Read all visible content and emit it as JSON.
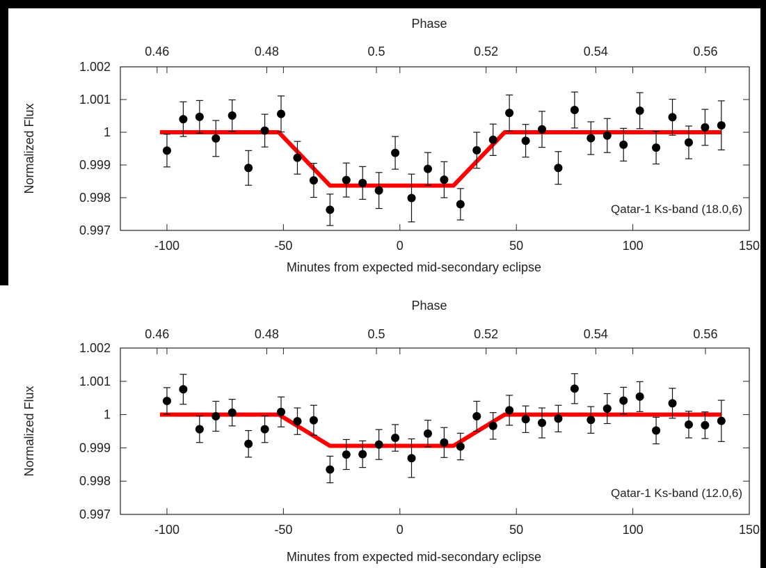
{
  "chart_data": [
    {
      "type": "scatter",
      "xlabel": "Minutes from expected mid-secondary eclipse",
      "ylabel": "Normalized Flux",
      "x2label": "Phase",
      "annotation": "Qatar-1 Ks-band (18.0,6)",
      "xlim": [
        -120,
        150
      ],
      "ylim": [
        0.997,
        1.002
      ],
      "x2lim": [
        0.4533,
        0.568
      ],
      "xticks": [
        "-100",
        "-50",
        "0",
        "50",
        "100",
        "150"
      ],
      "yticks": [
        "0.997",
        "0.998",
        "0.999",
        "1",
        "1.001",
        "1.002"
      ],
      "x2ticks": [
        "0.46",
        "0.48",
        "0.5",
        "0.52",
        "0.54",
        "0.56"
      ],
      "points": [
        {
          "x": -100,
          "y": 0.99944,
          "err": 0.0005
        },
        {
          "x": -93,
          "y": 1.0004,
          "err": 0.00053
        },
        {
          "x": -86,
          "y": 1.00047,
          "err": 0.0005
        },
        {
          "x": -79,
          "y": 0.99981,
          "err": 0.00055
        },
        {
          "x": -72,
          "y": 1.00051,
          "err": 0.00048
        },
        {
          "x": -65,
          "y": 0.99891,
          "err": 0.00053
        },
        {
          "x": -58,
          "y": 1.00005,
          "err": 0.0005
        },
        {
          "x": -51,
          "y": 1.00056,
          "err": 0.00055
        },
        {
          "x": -44,
          "y": 0.99922,
          "err": 0.0005
        },
        {
          "x": -37,
          "y": 0.99853,
          "err": 0.00052
        },
        {
          "x": -30,
          "y": 0.99763,
          "err": 0.00048
        },
        {
          "x": -23,
          "y": 0.99854,
          "err": 0.00052
        },
        {
          "x": -16,
          "y": 0.99845,
          "err": 0.0005
        },
        {
          "x": -9,
          "y": 0.99822,
          "err": 0.00055
        },
        {
          "x": -2,
          "y": 0.99937,
          "err": 0.0005
        },
        {
          "x": 5,
          "y": 0.99799,
          "err": 0.00073
        },
        {
          "x": 12,
          "y": 0.99888,
          "err": 0.0005
        },
        {
          "x": 19,
          "y": 0.99855,
          "err": 0.00055
        },
        {
          "x": 26,
          "y": 0.9978,
          "err": 0.00048
        },
        {
          "x": 33,
          "y": 0.99945,
          "err": 0.00055
        },
        {
          "x": 40,
          "y": 0.99977,
          "err": 0.00048
        },
        {
          "x": 47,
          "y": 1.00059,
          "err": 0.00055
        },
        {
          "x": 54,
          "y": 0.99974,
          "err": 0.0005
        },
        {
          "x": 61,
          "y": 1.00009,
          "err": 0.00055
        },
        {
          "x": 68,
          "y": 0.99891,
          "err": 0.0005
        },
        {
          "x": 75,
          "y": 1.00068,
          "err": 0.00055
        },
        {
          "x": 82,
          "y": 0.99982,
          "err": 0.0005
        },
        {
          "x": 89,
          "y": 0.9999,
          "err": 0.00052
        },
        {
          "x": 96,
          "y": 0.99962,
          "err": 0.0005
        },
        {
          "x": 103,
          "y": 1.00066,
          "err": 0.00055
        },
        {
          "x": 110,
          "y": 0.99953,
          "err": 0.0005
        },
        {
          "x": 117,
          "y": 1.00046,
          "err": 0.00055
        },
        {
          "x": 124,
          "y": 0.99969,
          "err": 0.0005
        },
        {
          "x": 131,
          "y": 1.00015,
          "err": 0.00055
        },
        {
          "x": 138,
          "y": 1.00021,
          "err": 0.00075
        }
      ],
      "model": {
        "x": [
          -103,
          -52,
          -30,
          23,
          45,
          138
        ],
        "y": [
          1.0,
          1.0,
          0.99837,
          0.99837,
          1.0,
          1.0
        ],
        "color": "#ff0000"
      }
    },
    {
      "type": "scatter",
      "xlabel": "Minutes from expected mid-secondary eclipse",
      "ylabel": "Normalized Flux",
      "x2label": "Phase",
      "annotation": "Qatar-1 Ks-band (12.0,6)",
      "xlim": [
        -120,
        150
      ],
      "ylim": [
        0.997,
        1.002
      ],
      "x2lim": [
        0.4533,
        0.568
      ],
      "xticks": [
        "-100",
        "-50",
        "0",
        "50",
        "100",
        "150"
      ],
      "yticks": [
        "0.997",
        "0.998",
        "0.999",
        "1",
        "1.001",
        "1.002"
      ],
      "x2ticks": [
        "0.46",
        "0.48",
        "0.5",
        "0.52",
        "0.54",
        "0.56"
      ],
      "points": [
        {
          "x": -100,
          "y": 1.00041,
          "err": 0.0004
        },
        {
          "x": -93,
          "y": 1.00076,
          "err": 0.00045
        },
        {
          "x": -86,
          "y": 0.99956,
          "err": 0.0004
        },
        {
          "x": -79,
          "y": 0.99995,
          "err": 0.00045
        },
        {
          "x": -72,
          "y": 1.00006,
          "err": 0.0004
        },
        {
          "x": -65,
          "y": 0.99912,
          "err": 0.0004
        },
        {
          "x": -58,
          "y": 0.99956,
          "err": 0.0004
        },
        {
          "x": -51,
          "y": 1.00008,
          "err": 0.00045
        },
        {
          "x": -44,
          "y": 0.9998,
          "err": 0.0004
        },
        {
          "x": -37,
          "y": 0.99983,
          "err": 0.00045
        },
        {
          "x": -30,
          "y": 0.99835,
          "err": 0.0004
        },
        {
          "x": -23,
          "y": 0.9988,
          "err": 0.00045
        },
        {
          "x": -16,
          "y": 0.99881,
          "err": 0.0004
        },
        {
          "x": -9,
          "y": 0.9991,
          "err": 0.00045
        },
        {
          "x": -2,
          "y": 0.9993,
          "err": 0.0004
        },
        {
          "x": 5,
          "y": 0.99869,
          "err": 0.00058
        },
        {
          "x": 12,
          "y": 0.99943,
          "err": 0.0004
        },
        {
          "x": 19,
          "y": 0.99916,
          "err": 0.00045
        },
        {
          "x": 26,
          "y": 0.99904,
          "err": 0.0004
        },
        {
          "x": 33,
          "y": 0.99995,
          "err": 0.00045
        },
        {
          "x": 40,
          "y": 0.99966,
          "err": 0.0004
        },
        {
          "x": 47,
          "y": 1.00013,
          "err": 0.00045
        },
        {
          "x": 54,
          "y": 0.99986,
          "err": 0.0004
        },
        {
          "x": 61,
          "y": 0.99975,
          "err": 0.00045
        },
        {
          "x": 68,
          "y": 0.99988,
          "err": 0.0004
        },
        {
          "x": 75,
          "y": 1.00078,
          "err": 0.00045
        },
        {
          "x": 82,
          "y": 0.99984,
          "err": 0.0004
        },
        {
          "x": 89,
          "y": 1.00018,
          "err": 0.00045
        },
        {
          "x": 96,
          "y": 1.00042,
          "err": 0.0004
        },
        {
          "x": 103,
          "y": 1.00054,
          "err": 0.00045
        },
        {
          "x": 110,
          "y": 0.99952,
          "err": 0.0004
        },
        {
          "x": 117,
          "y": 1.00034,
          "err": 0.00045
        },
        {
          "x": 124,
          "y": 0.9997,
          "err": 0.0004
        },
        {
          "x": 131,
          "y": 0.99968,
          "err": 0.0004
        },
        {
          "x": 138,
          "y": 0.99981,
          "err": 0.00062
        }
      ],
      "model": {
        "x": [
          -103,
          -52,
          -30,
          23,
          45,
          138
        ],
        "y": [
          1.0,
          1.0,
          0.99906,
          0.99906,
          1.0,
          1.0
        ],
        "color": "#ff0000"
      }
    }
  ]
}
